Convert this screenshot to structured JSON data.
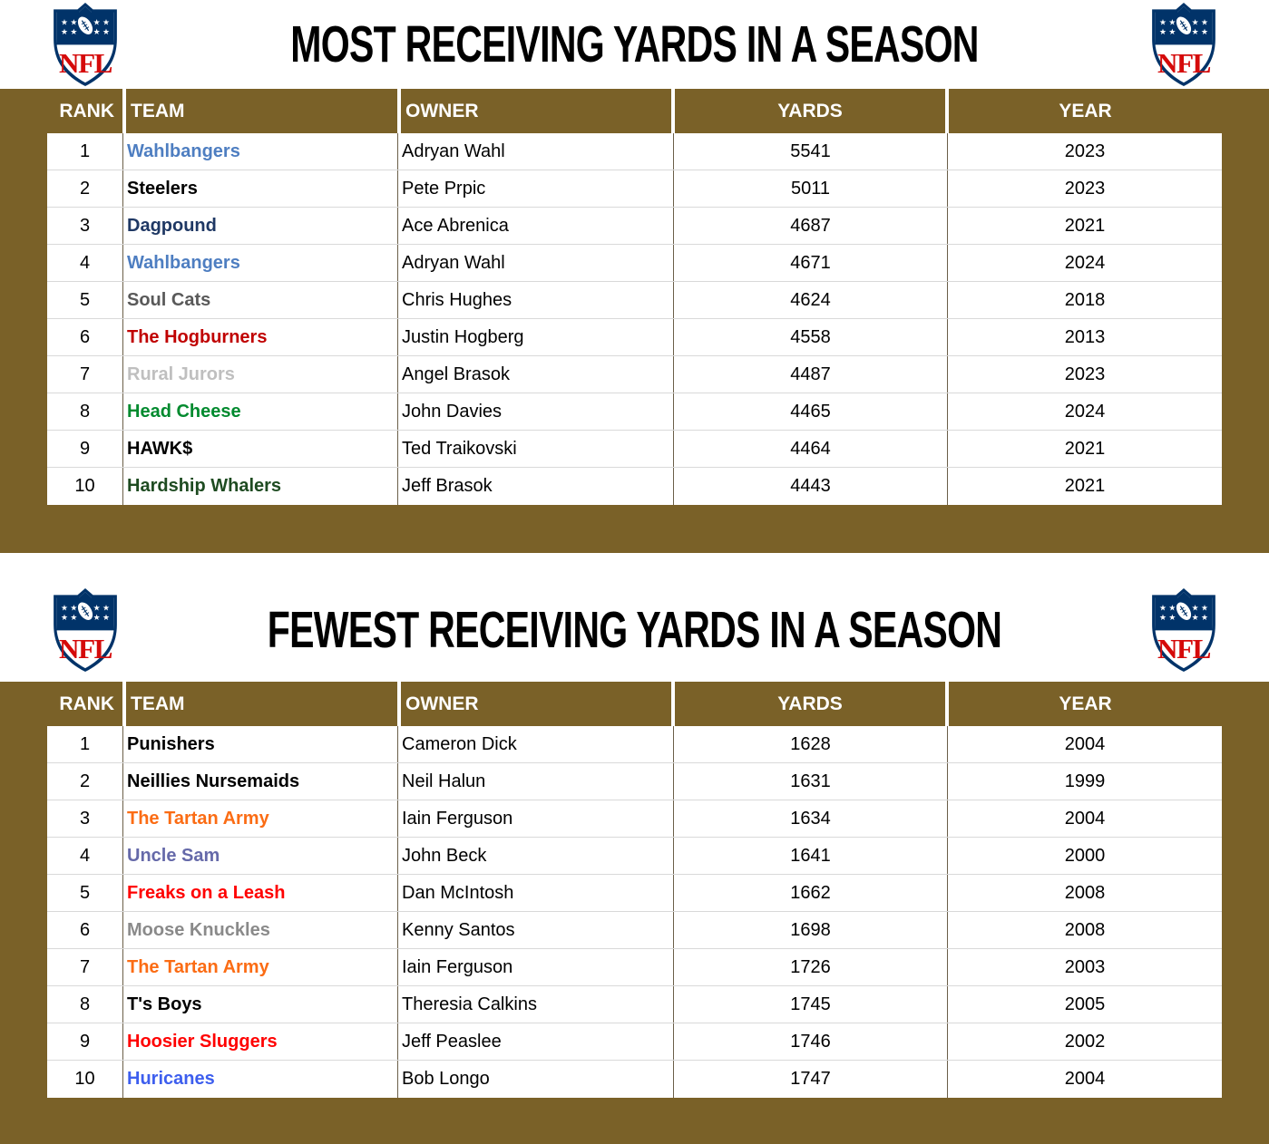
{
  "brand": {
    "apron_brown": "#7A6128",
    "nfl_navy": "#013369",
    "nfl_red": "#D50A0A",
    "row_separator": "#D9D9D9",
    "column_divider": "#6B5F49",
    "logo_label": "NFL"
  },
  "tables": [
    {
      "title": "MOST RECEIVING YARDS IN A SEASON",
      "columns": [
        "RANK",
        "TEAM",
        "OWNER",
        "YARDS",
        "YEAR"
      ],
      "rows": [
        {
          "rank": "1",
          "team": "Wahlbangers",
          "color": "#4E7EC1",
          "owner": "Adryan Wahl",
          "yards": "5541",
          "year": "2023"
        },
        {
          "rank": "2",
          "team": "Steelers",
          "color": "#000000",
          "owner": "Pete Prpic",
          "yards": "5011",
          "year": "2023"
        },
        {
          "rank": "3",
          "team": "Dagpound",
          "color": "#1F3864",
          "owner": "Ace Abrenica",
          "yards": "4687",
          "year": "2021"
        },
        {
          "rank": "4",
          "team": "Wahlbangers",
          "color": "#4E7EC1",
          "owner": "Adryan Wahl",
          "yards": "4671",
          "year": "2024"
        },
        {
          "rank": "5",
          "team": "Soul Cats",
          "color": "#595959",
          "owner": "Chris Hughes",
          "yards": "4624",
          "year": "2018"
        },
        {
          "rank": "6",
          "team": "The Hogburners",
          "color": "#C00000",
          "owner": "Justin Hogberg",
          "yards": "4558",
          "year": "2013"
        },
        {
          "rank": "7",
          "team": "Rural Jurors",
          "color": "#BFBFBF",
          "owner": "Angel Brasok",
          "yards": "4487",
          "year": "2023"
        },
        {
          "rank": "8",
          "team": "Head Cheese",
          "color": "#008A2E",
          "owner": "John Davies",
          "yards": "4465",
          "year": "2024"
        },
        {
          "rank": "9",
          "team": "HAWK$",
          "color": "#000000",
          "owner": "Ted Traikovski",
          "yards": "4464",
          "year": "2021"
        },
        {
          "rank": "10",
          "team": "Hardship Whalers",
          "color": "#1E4B21",
          "owner": "Jeff Brasok",
          "yards": "4443",
          "year": "2021"
        }
      ]
    },
    {
      "title": "FEWEST RECEIVING YARDS IN A SEASON",
      "columns": [
        "RANK",
        "TEAM",
        "OWNER",
        "YARDS",
        "YEAR"
      ],
      "rows": [
        {
          "rank": "1",
          "team": "Punishers",
          "color": "#000000",
          "owner": "Cameron Dick",
          "yards": "1628",
          "year": "2004"
        },
        {
          "rank": "2",
          "team": "Neillies Nursemaids",
          "color": "#000000",
          "owner": "Neil Halun",
          "yards": "1631",
          "year": "1999"
        },
        {
          "rank": "3",
          "team": "The Tartan Army",
          "color": "#FB6C14",
          "owner": "Iain Ferguson",
          "yards": "1634",
          "year": "2004"
        },
        {
          "rank": "4",
          "team": "Uncle Sam",
          "color": "#6569A9",
          "owner": "John Beck",
          "yards": "1641",
          "year": "2000"
        },
        {
          "rank": "5",
          "team": "Freaks on a Leash",
          "color": "#FF0000",
          "owner": "Dan McIntosh",
          "yards": "1662",
          "year": "2008"
        },
        {
          "rank": "6",
          "team": "Moose Knuckles",
          "color": "#8A8A8A",
          "owner": "Kenny Santos",
          "yards": "1698",
          "year": "2008"
        },
        {
          "rank": "7",
          "team": "The Tartan Army",
          "color": "#FB6C14",
          "owner": "Iain Ferguson",
          "yards": "1726",
          "year": "2003"
        },
        {
          "rank": "8",
          "team": "T's Boys",
          "color": "#000000",
          "owner": "Theresia Calkins",
          "yards": "1745",
          "year": "2005"
        },
        {
          "rank": "9",
          "team": "Hoosier Sluggers",
          "color": "#FF0000",
          "owner": "Jeff Peaslee",
          "yards": "1746",
          "year": "2002"
        },
        {
          "rank": "10",
          "team": "Huricanes",
          "color": "#3D5EEE",
          "owner": "Bob Longo",
          "yards": "1747",
          "year": "2004"
        }
      ]
    }
  ]
}
